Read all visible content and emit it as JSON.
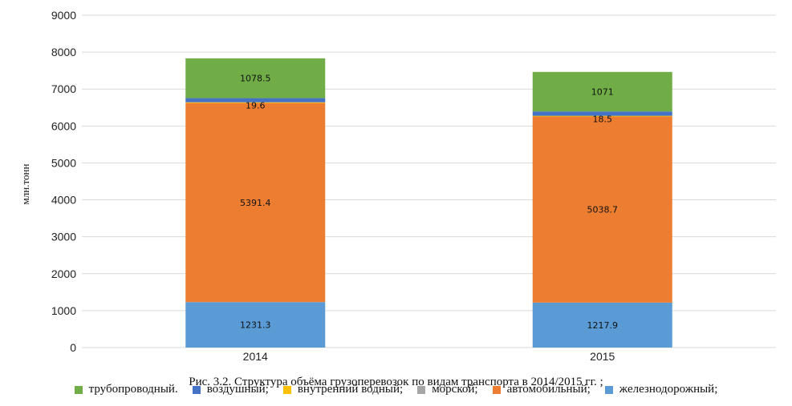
{
  "chart_data": {
    "type": "bar",
    "stacked": true,
    "categories": [
      "2014",
      "2015"
    ],
    "ylabel": "млн.тонн",
    "ylim": [
      0,
      9000
    ],
    "yticks": [
      0,
      1000,
      2000,
      3000,
      4000,
      5000,
      6000,
      7000,
      8000,
      9000
    ],
    "grid": true,
    "legend_position": "bottom",
    "series": [
      {
        "name": "железнодорожный;",
        "color": "#5B9BD5",
        "values": [
          1231.3,
          1217.9
        ]
      },
      {
        "name": "автомобильный;",
        "color": "#ED7D31",
        "values": [
          5391.4,
          5038.7
        ]
      },
      {
        "name": "морской;",
        "color": "#A5A5A5",
        "values": [
          null,
          null
        ]
      },
      {
        "name": "внутренний водный;",
        "color": "#FFC000",
        "values": [
          19.6,
          18.5
        ]
      },
      {
        "name": "воздушный;",
        "color": "#4472C4",
        "values": [
          112,
          118.1
        ]
      },
      {
        "name": "трубопроводный.",
        "color": "#70AD47",
        "values": [
          1078.5,
          1071
        ]
      }
    ],
    "data_labels": [
      [
        "1231.3",
        "1217.9"
      ],
      [
        "5391.4",
        "5038.7"
      ],
      [
        "",
        ""
      ],
      [
        "19.6",
        "18.5"
      ],
      [
        "112",
        "118.1"
      ],
      [
        "1078.5",
        "1071"
      ]
    ],
    "legend_order": [
      5,
      4,
      3,
      2,
      1,
      0
    ]
  },
  "caption": "Рис. 3.2. Структура объёма грузоперевозок по видам транспорта в 2014/2015 гг. ;"
}
